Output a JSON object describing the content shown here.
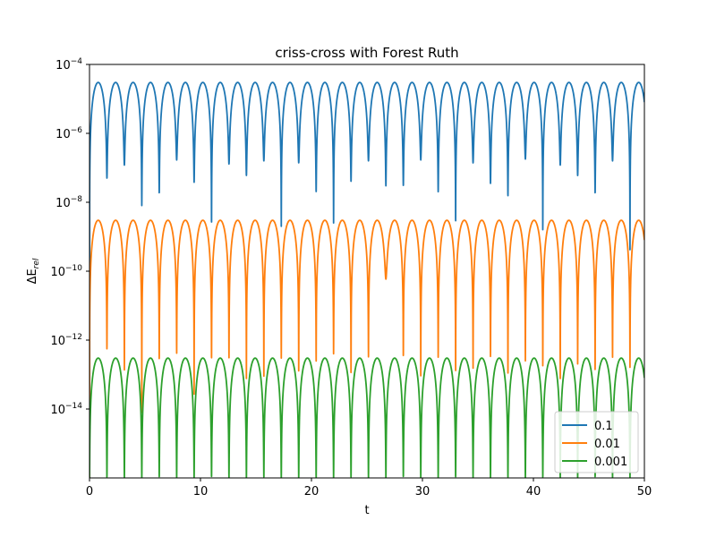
{
  "chart_data": {
    "type": "line",
    "title": "criss-cross with Forest Ruth",
    "xlabel": "t",
    "ylabel_base": "ΔE",
    "ylabel_sub": "rel",
    "xlim": [
      0,
      50
    ],
    "ylim": [
      1e-16,
      0.0001
    ],
    "yscale": "log",
    "x_ticks": [
      0,
      10,
      20,
      30,
      40,
      50
    ],
    "x_tick_labels": [
      "0",
      "10",
      "20",
      "30",
      "40",
      "50"
    ],
    "y_ticks": [
      {
        "value": 0.0001,
        "base": "10",
        "exp": "−4"
      },
      {
        "value": 1e-06,
        "base": "10",
        "exp": "−6"
      },
      {
        "value": 1e-08,
        "base": "10",
        "exp": "−8"
      },
      {
        "value": 1e-10,
        "base": "10",
        "exp": "−10"
      },
      {
        "value": 1e-12,
        "base": "10",
        "exp": "−12"
      },
      {
        "value": 1e-14,
        "base": "10",
        "exp": "−14"
      }
    ],
    "grid": false,
    "legend_position": "lower-right",
    "period": 1.571,
    "series": [
      {
        "name": "0.1",
        "color": "#1f77b4",
        "peak": 3e-05,
        "dip_minima": [
          1e-16,
          5e-08,
          1.2e-07,
          8e-09,
          1.8e-08,
          1.7e-07,
          3.8e-08,
          1.6e-09,
          1.3e-07,
          6e-08,
          1.6e-07,
          2e-09,
          1.4e-07,
          2e-08,
          2.5e-09,
          4e-08,
          1.6e-07,
          3e-08,
          3e-08,
          1.7e-07,
          2e-08,
          2e-09,
          1.4e-07,
          3.5e-08,
          1.5e-08,
          1.8e-07,
          1e-09,
          1.2e-07,
          6e-08,
          1.8e-08,
          1.6e-07,
          3e-10
        ]
      },
      {
        "name": "0.01",
        "color": "#ff7f0e",
        "peak": 3e-09,
        "dip_minima": [
          1e-16,
          5e-13,
          1e-13,
          5e-15,
          2e-13,
          4e-13,
          1.5e-14,
          2e-13,
          3e-13,
          5e-14,
          1.5e-14,
          3e-13,
          8e-14,
          2e-13,
          4e-13,
          4e-14,
          3e-13,
          6e-11,
          2.5e-13,
          8e-14,
          3e-13,
          4e-14,
          1.5e-13,
          3e-13,
          5e-14,
          2.5e-13,
          1.2e-13,
          4e-14,
          2e-13,
          5e-14,
          3e-13,
          1.5e-13
        ]
      },
      {
        "name": "0.001",
        "color": "#2ca02c",
        "peak": 3e-13,
        "dip_minima": [
          1e-16,
          1e-16,
          1e-16,
          1e-16,
          1e-16,
          1e-16,
          1e-16,
          1e-16,
          1e-16,
          1e-16,
          1e-16,
          1e-16,
          1e-16,
          1e-16,
          1e-16,
          1e-16,
          1e-16,
          1e-16,
          1e-16,
          1e-16,
          1e-16,
          1e-16,
          1e-16,
          1e-16,
          1e-16,
          1e-16,
          1e-16,
          1e-16,
          1e-16,
          1e-16,
          1e-16,
          1e-16
        ]
      }
    ]
  }
}
